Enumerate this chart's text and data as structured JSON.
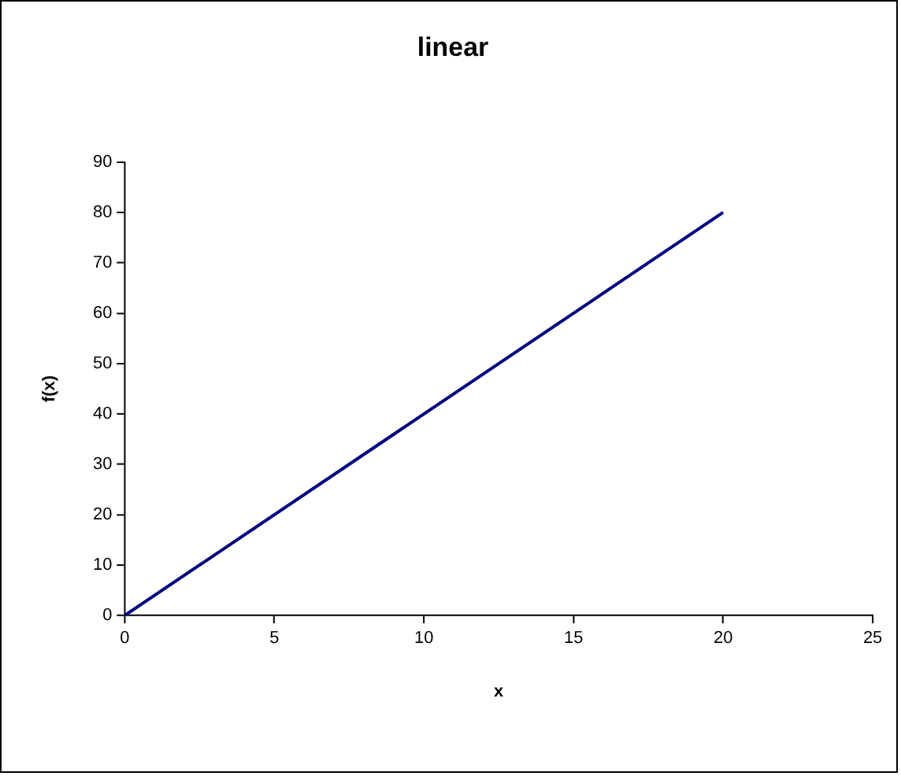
{
  "chart_data": {
    "type": "line",
    "title": "linear",
    "xlabel": "x",
    "ylabel": "f(x)",
    "x": [
      0,
      20
    ],
    "series": [
      {
        "color": "#000080",
        "values": [
          0,
          80
        ]
      }
    ],
    "xlim": [
      0,
      25
    ],
    "xticks": [
      0,
      5,
      10,
      15,
      20,
      25
    ],
    "ylim": [
      0,
      90
    ],
    "yticks": [
      0,
      10,
      20,
      30,
      40,
      50,
      60,
      70,
      80,
      90
    ],
    "grid": false,
    "legend": false,
    "marker": "none",
    "line_style": "solid"
  }
}
